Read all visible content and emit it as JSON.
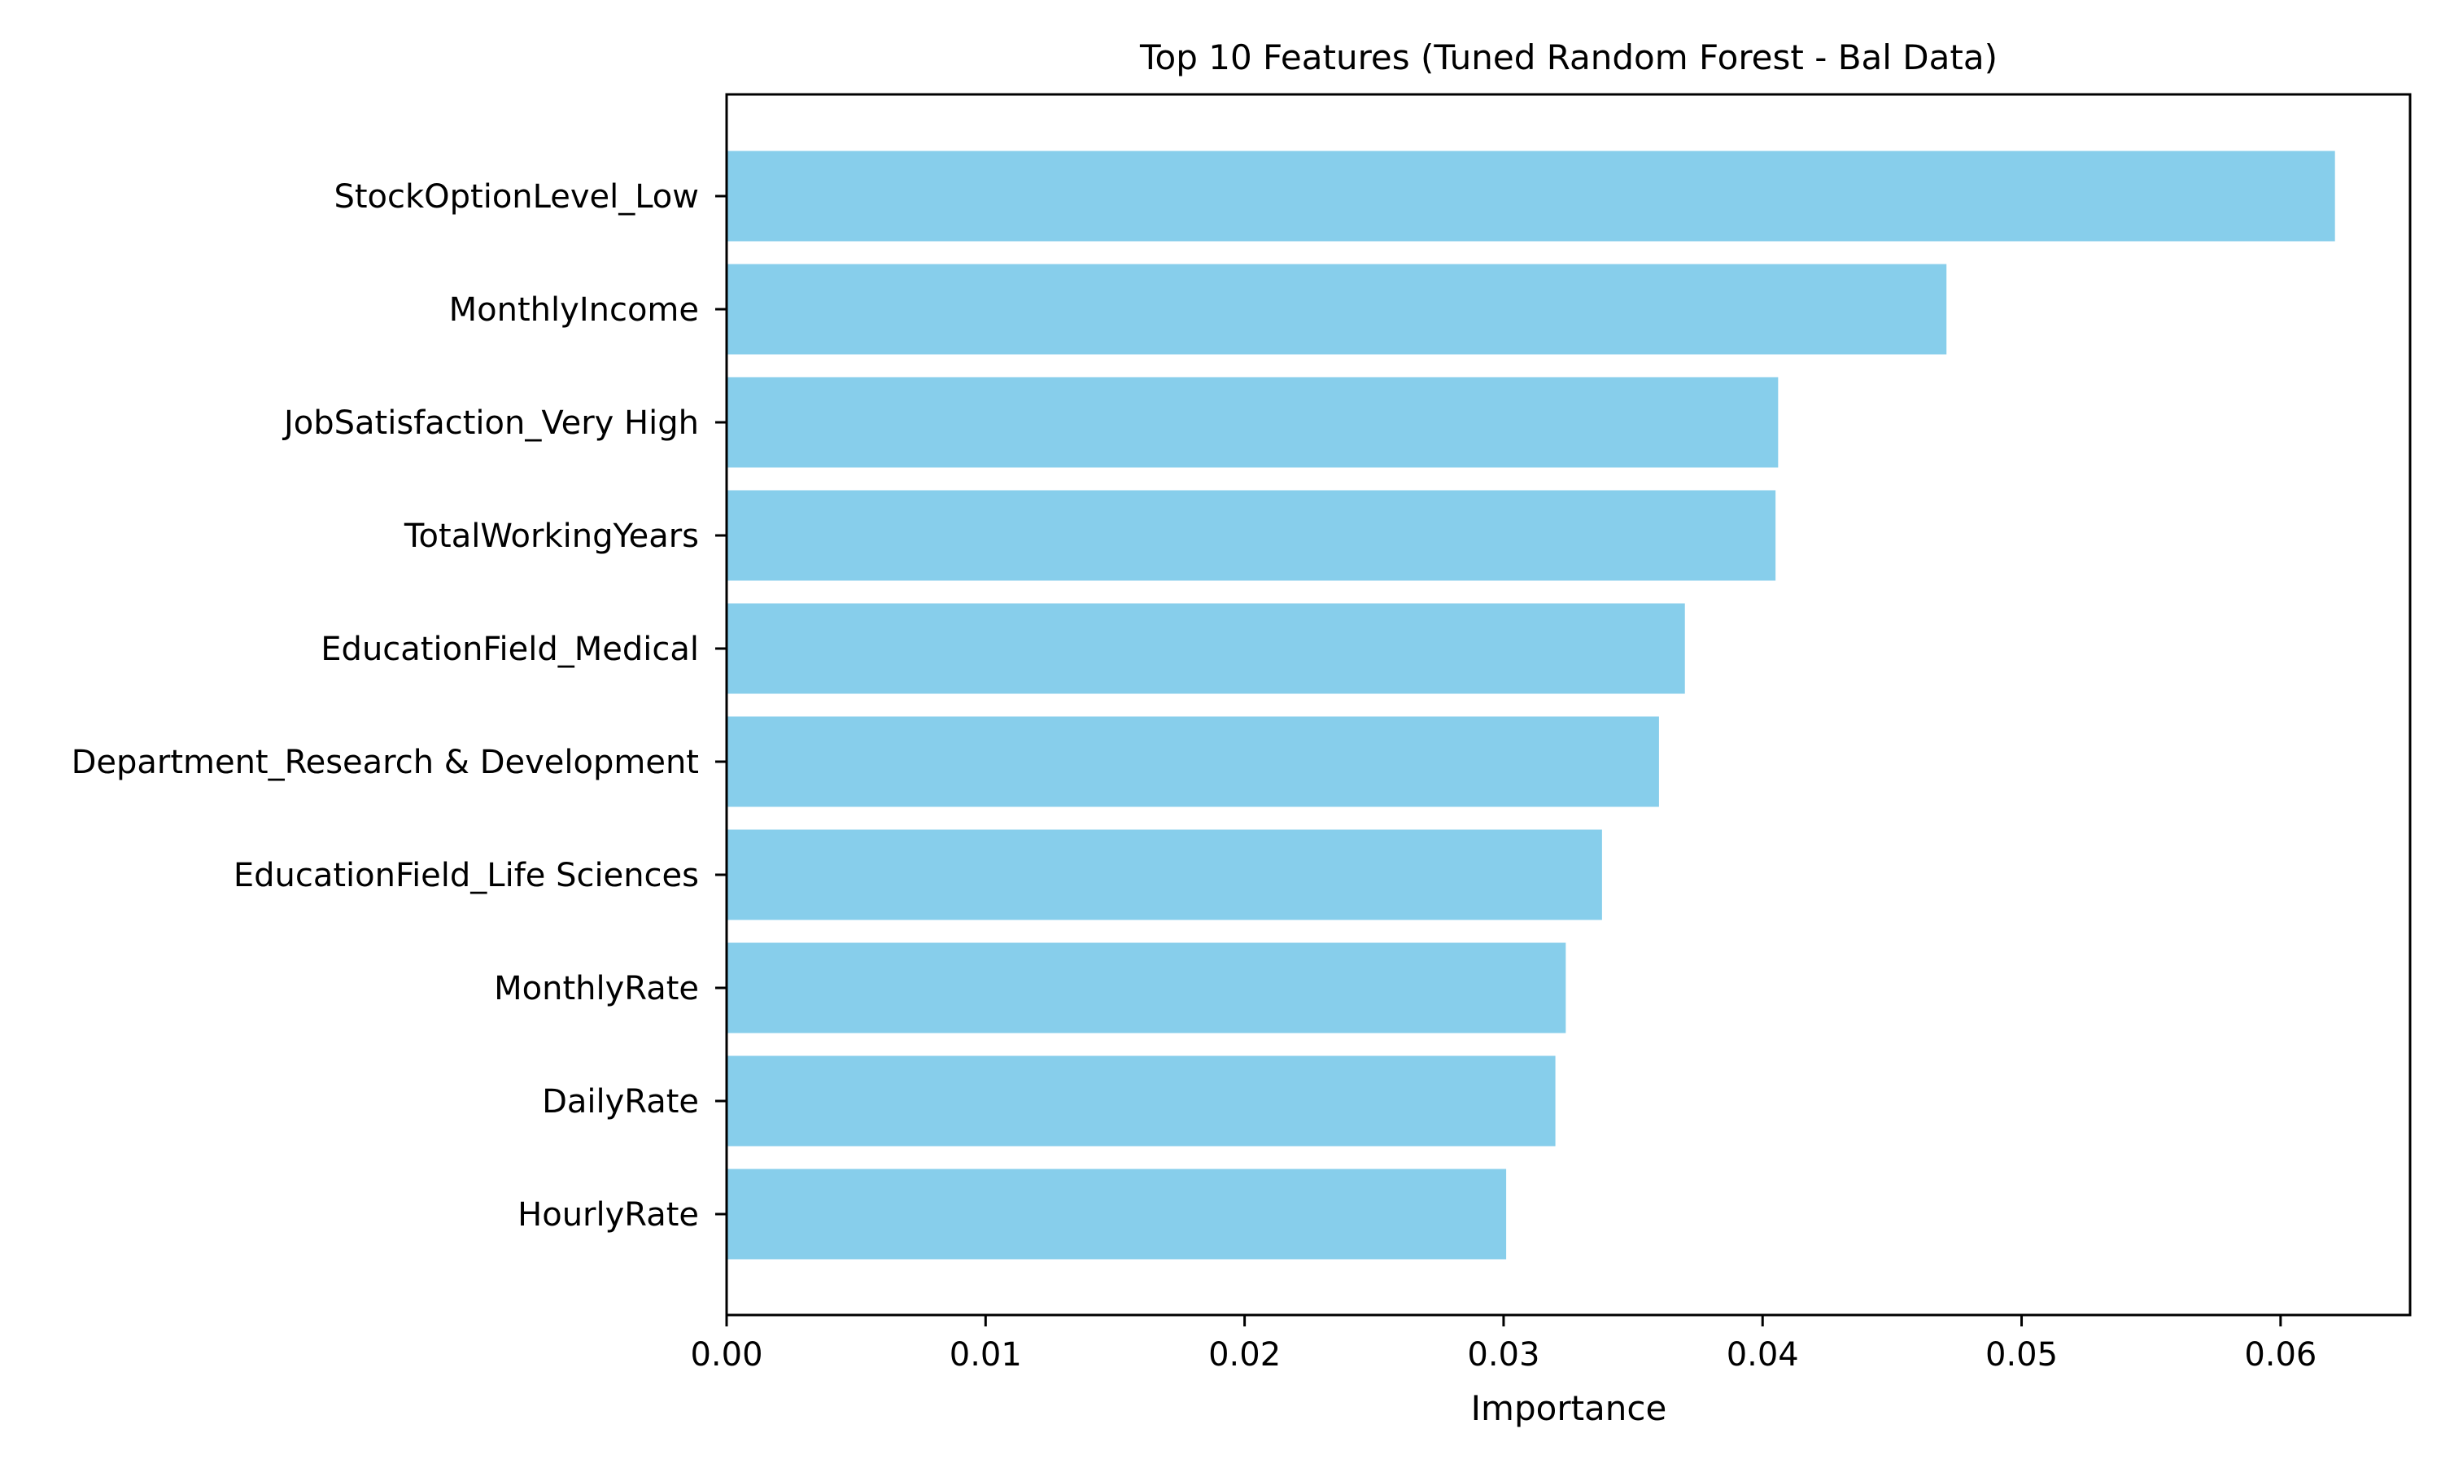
{
  "chart_data": {
    "type": "bar",
    "orientation": "horizontal",
    "title": "Top 10 Features (Tuned Random Forest - Bal Data)",
    "xlabel": "Importance",
    "ylabel": "",
    "categories": [
      "StockOptionLevel_Low",
      "MonthlyIncome",
      "JobSatisfaction_Very High",
      "TotalWorkingYears",
      "EducationField_Medical",
      "Department_Research & Development",
      "EducationField_Life Sciences",
      "MonthlyRate",
      "DailyRate",
      "HourlyRate"
    ],
    "values": [
      0.0621,
      0.0471,
      0.0406,
      0.0405,
      0.037,
      0.036,
      0.0338,
      0.0324,
      0.032,
      0.0301
    ],
    "xlim": [
      0,
      0.065
    ],
    "xticks": [
      0.0,
      0.01,
      0.02,
      0.03,
      0.04,
      0.05,
      0.06
    ],
    "xtick_labels": [
      "0.00",
      "0.01",
      "0.02",
      "0.03",
      "0.04",
      "0.05",
      "0.06"
    ],
    "bar_color": "#87CEEB",
    "grid": false,
    "legend": "none"
  }
}
